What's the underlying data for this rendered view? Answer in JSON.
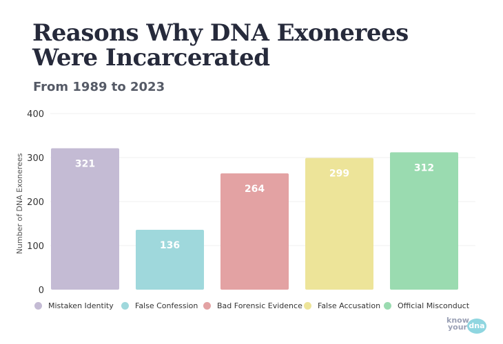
{
  "header": {
    "title": "Reasons Why DNA Exonerees Were Incarcerated",
    "subtitle": "From 1989 to 2023"
  },
  "chart_data": {
    "type": "bar",
    "title": "Reasons Why DNA Exonerees Were Incarcerated",
    "subtitle": "From 1989 to 2023",
    "categories": [
      "Mistaken Identity",
      "False Confession",
      "Bad Forensic Evidence",
      "False Accusation",
      "Official Misconduct"
    ],
    "values": [
      321,
      136,
      264,
      299,
      312
    ],
    "colors": [
      "#c4bbd4",
      "#9fd8dc",
      "#e3a2a3",
      "#ede499",
      "#9adbb0"
    ],
    "xlabel": "",
    "ylabel": "Number of DNA Exonerees",
    "ylim": [
      0,
      400
    ],
    "yticks": [
      0,
      100,
      200,
      300,
      400
    ],
    "grid": true,
    "legend_position": "bottom"
  },
  "logo": {
    "know": "know",
    "your": "your",
    "dna": "dna"
  }
}
